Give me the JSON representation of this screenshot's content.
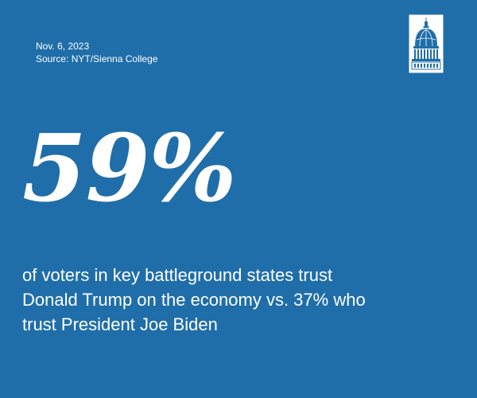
{
  "meta": {
    "date": "Nov. 6, 2023",
    "source": "Source: NYT/Sienna College"
  },
  "logo": {
    "icon": "capitol-dome-icon"
  },
  "headline": {
    "stat": "59%"
  },
  "description": {
    "lines": [
      "of voters in key battleground states trust",
      "Donald Trump on the economy vs. 37% who",
      "trust President Joe Biden"
    ]
  },
  "colors": {
    "background": "#1f6ea9",
    "text": "#ffffff"
  }
}
